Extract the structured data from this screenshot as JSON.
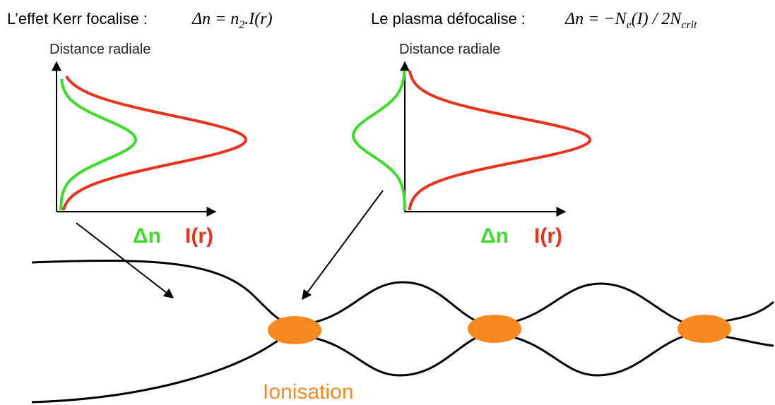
{
  "left": {
    "heading": "L’effet Kerr focalise :",
    "formula": [
      "Δn = n",
      "2",
      ".I(r)"
    ],
    "axis_label": "Distance radiale",
    "legend_dn": "Δn",
    "legend_ir": "I(r)"
  },
  "right": {
    "heading": "Le plasma défocalise :",
    "formula": [
      "Δn = −N",
      "e",
      "(I) / 2N",
      "crit"
    ],
    "axis_label": "Distance radiale",
    "legend_dn": "Δn",
    "legend_ir": "I(r)"
  },
  "ionisation": "Ionisation"
}
